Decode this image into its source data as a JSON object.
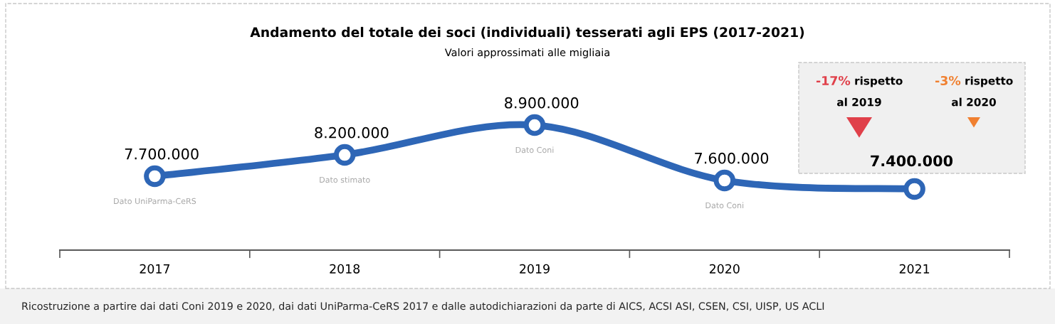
{
  "chart_data": {
    "type": "line",
    "title": "Andamento del totale dei soci (individuali) tesserati agli EPS (2017-2021)",
    "subtitle": "Valori approssimati alle migliaia",
    "categories": [
      "2017",
      "2018",
      "2019",
      "2020",
      "2021"
    ],
    "series": [
      {
        "color": "#2e66b6",
        "values": [
          7700000,
          8200000,
          8900000,
          7600000,
          7400000
        ],
        "value_labels": [
          "7.700.000",
          "8.200.000",
          "8.900.000",
          "7.600.000",
          "7.400.000"
        ]
      }
    ],
    "tick_labels": "x",
    "marker": "circle",
    "line_style": "solid",
    "grid": false,
    "legend": false,
    "annotations": [
      {
        "text": "Dato UniParma-CeRS",
        "x": "2017",
        "y": 7700000
      },
      {
        "text": "Dato stimato",
        "x": "2018",
        "y": 8200000
      },
      {
        "text": "Dato Coni",
        "x": "2019",
        "y": 8900000
      },
      {
        "text": "Dato Coni",
        "x": "2020",
        "y": 7600000
      },
      "-17% rispetto\nal 2019",
      "-3% rispetto\nal 2020",
      "Ricostruzione a partire dai dati Coni 2019 e 2020, dai dati UniParma-CeRS 2017 e dalle autodichiarazioni da parte di AICS, ACSI ASI, CSEN, CSI, UISP, US ACLI"
    ]
  }
}
